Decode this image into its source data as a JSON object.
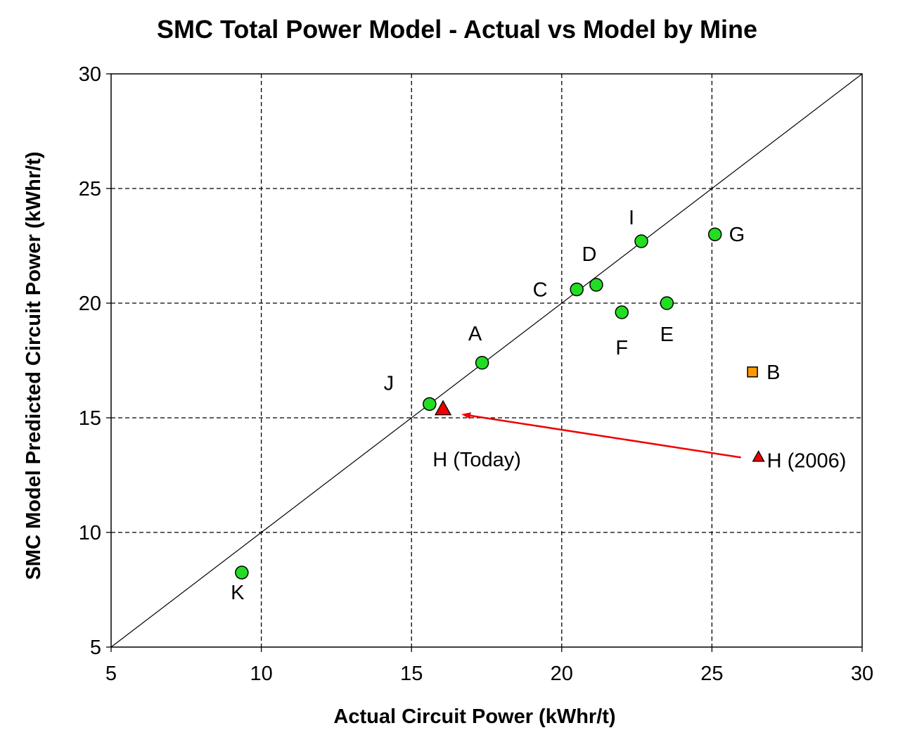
{
  "chart_data": {
    "type": "scatter",
    "title": "SMC Total Power Model - Actual vs Model by Mine",
    "xlabel": "Actual Circuit Power (kWhr/t)",
    "ylabel": "SMC Model Predicted Circuit Power (kWhr/t)",
    "xlim": [
      5,
      30
    ],
    "ylim": [
      5,
      30
    ],
    "xticks": [
      "5",
      "10",
      "15",
      "20",
      "25",
      "30"
    ],
    "yticks": [
      "5",
      "10",
      "15",
      "20",
      "25",
      "30"
    ],
    "grid": true,
    "grid_style": "dashed",
    "reference_line": "y = x",
    "points": [
      {
        "label": "K",
        "x": 9.35,
        "y": 8.25,
        "marker": "circle",
        "color": "#22dd22"
      },
      {
        "label": "J",
        "x": 15.6,
        "y": 15.6,
        "marker": "circle",
        "color": "#22dd22"
      },
      {
        "label": "A",
        "x": 17.35,
        "y": 17.4,
        "marker": "circle",
        "color": "#22dd22"
      },
      {
        "label": "C",
        "x": 20.5,
        "y": 20.6,
        "marker": "circle",
        "color": "#22dd22"
      },
      {
        "label": "D",
        "x": 21.15,
        "y": 20.8,
        "marker": "circle",
        "color": "#22dd22"
      },
      {
        "label": "I",
        "x": 22.65,
        "y": 22.7,
        "marker": "circle",
        "color": "#22dd22"
      },
      {
        "label": "G",
        "x": 25.1,
        "y": 23.0,
        "marker": "circle",
        "color": "#22dd22"
      },
      {
        "label": "F",
        "x": 22.0,
        "y": 19.6,
        "marker": "circle",
        "color": "#22dd22"
      },
      {
        "label": "E",
        "x": 23.5,
        "y": 20.0,
        "marker": "circle",
        "color": "#22dd22"
      },
      {
        "label": "B",
        "x": 26.35,
        "y": 17.0,
        "marker": "square",
        "color": "#ff9900"
      },
      {
        "label": "H (Today)",
        "x": 16.05,
        "y": 15.4,
        "marker": "triangle",
        "color": "#ee0000"
      },
      {
        "label": "H (2006)",
        "x": 26.55,
        "y": 13.3,
        "marker": "triangle",
        "color": "#ee0000"
      }
    ],
    "annotation_arrow": {
      "from": "H (2006)",
      "to": "H (Today)",
      "color": "#ee0000"
    }
  }
}
